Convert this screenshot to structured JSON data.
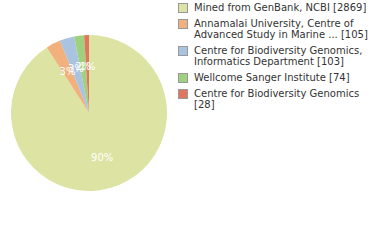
{
  "chart_data": {
    "type": "pie",
    "categories": [
      "Mined from GenBank, NCBI [2869]",
      "Annamalai University, Centre of Advanced Study in Marine ... [105]",
      "Centre for Biodiversity Genomics, Informatics Department [103]",
      "Wellcome Sanger Institute [74]",
      "Centre for Biodiversity Genomics [28]"
    ],
    "values": [
      90,
      3,
      3,
      2,
      1
    ],
    "value_labels": [
      "90%",
      "3%",
      "3%",
      "2%",
      "1%"
    ],
    "data_labels": true,
    "colors": [
      "#dde3a2",
      "#f2b07c",
      "#a9c3e0",
      "#9fd07c",
      "#e2765c"
    ],
    "legend": "right"
  }
}
